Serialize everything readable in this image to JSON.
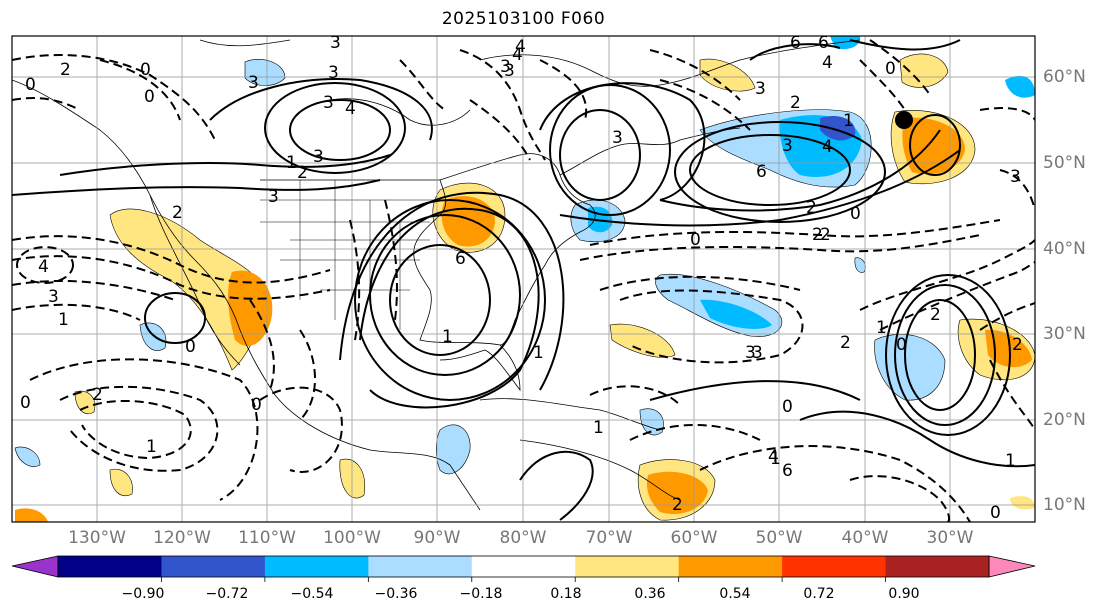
{
  "title": "2025103100 F060",
  "lon_labels": [
    "130°W",
    "120°W",
    "110°W",
    "100°W",
    "90°W",
    "80°W",
    "70°W",
    "60°W",
    "50°W",
    "40°W",
    "30°W"
  ],
  "lat_labels": [
    "60°N",
    "50°N",
    "40°N",
    "30°N",
    "20°N",
    "10°N"
  ],
  "colorbar": {
    "colors": [
      "#9933cc",
      "#000088",
      "#3355cc",
      "#00bbff",
      "#aaddff",
      "#ffffff",
      "#ffe680",
      "#ff9900",
      "#ff3300",
      "#aa2222",
      "#ff88bb"
    ],
    "ticks": [
      "−0.90",
      "−0.72",
      "−0.54",
      "−0.36",
      "−0.18",
      "0.18",
      "0.36",
      "0.54",
      "0.72",
      "0.90"
    ]
  },
  "contour_labels": [
    "3",
    "4",
    "6",
    "3",
    "4",
    "6",
    "0",
    "2",
    "2",
    "4",
    "3",
    "3",
    "1",
    "0",
    "2",
    "1",
    "0",
    "6",
    "2",
    "0",
    "3",
    "3",
    "6",
    "4",
    "1",
    "2",
    "2",
    "0",
    "1",
    "2",
    "3",
    "0",
    "2",
    "1",
    "0",
    "0",
    "4",
    "6",
    "4",
    "3",
    "3",
    "0",
    "2",
    "3",
    "2",
    "1",
    "3",
    "3",
    "0",
    "0",
    "2",
    "3",
    "2",
    "4",
    "1",
    "1",
    "1",
    "1",
    "0",
    "3",
    "3"
  ],
  "marker": "black-dot"
}
